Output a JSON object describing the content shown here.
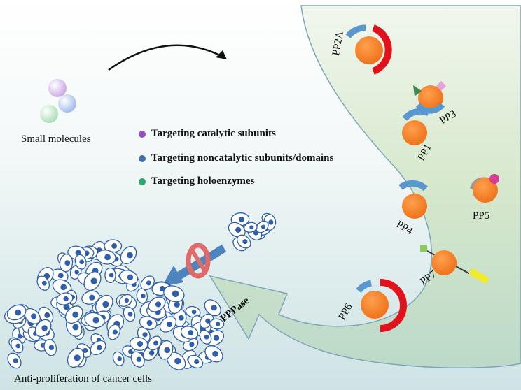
{
  "source_label": "Small molecules",
  "legend": [
    {
      "text": "Targeting catalytic subunits",
      "color": "#9a4fc7"
    },
    {
      "text": "Targeting noncatalytic subunits/domains",
      "color": "#3d6fb3"
    },
    {
      "text": "Targeting holoenzymes",
      "color": "#2aa86a"
    }
  ],
  "enzymes": {
    "pp2a": "PP2A",
    "pp3": "PP3",
    "pp1": "PP1",
    "pp5": "PP5",
    "pp4": "PP4",
    "pp7": "PP7",
    "pp6": "PP6"
  },
  "family_label": "PPPase",
  "outcome_label": "Anti-proliferation of cancer cells",
  "colors": {
    "catalytic": "#f47c2a",
    "regulatory": "#5b97cf",
    "scaffold": "#e0121c",
    "arrow_fill": "#cfe2c4",
    "cell": "#2e5fa8"
  }
}
